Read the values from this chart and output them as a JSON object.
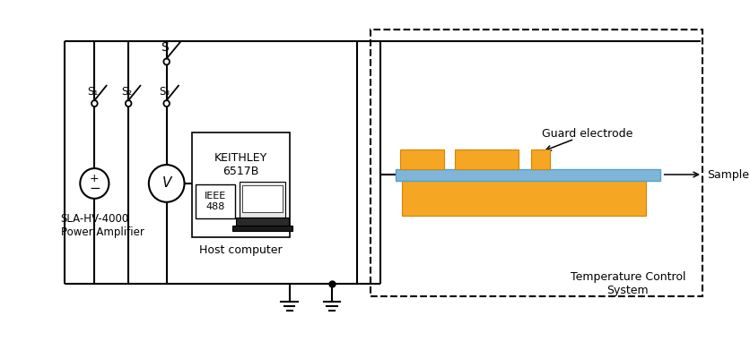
{
  "bg_color": "#ffffff",
  "orange_color": "#F5A623",
  "blue_color": "#7EB6D9",
  "labels": {
    "S": "S",
    "S1": "S₁",
    "S2": "S₂",
    "S3": "S₃",
    "keithley": "KEITHLEY\n6517B",
    "ieee": "IEEE\n488",
    "host": "Host computer",
    "sla": "SLA-HV-4000\nPower Amplifier",
    "guard": "Guard electrode",
    "sample": "Sample",
    "temp": "Temperature Control\nSystem"
  }
}
